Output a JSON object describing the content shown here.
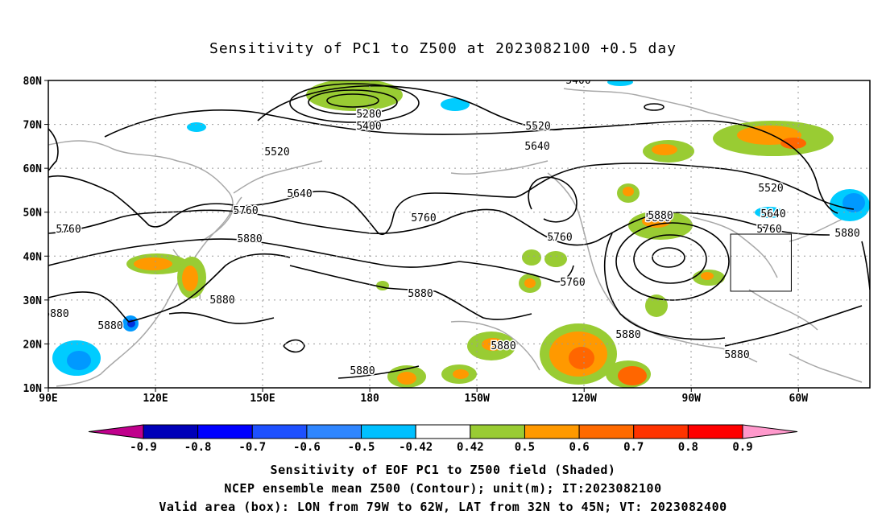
{
  "title": "Sensitivity of PC1 to Z500 at 2023082100 +0.5 day",
  "map": {
    "lat_labels": [
      "80N",
      "70N",
      "60N",
      "50N",
      "40N",
      "30N",
      "20N",
      "10N"
    ],
    "lon_labels": [
      "90E",
      "120E",
      "150E",
      "180",
      "150W",
      "120W",
      "90W",
      "60W"
    ],
    "lon_range": [
      90,
      320
    ],
    "lat_range": [
      10,
      80
    ],
    "contour_labels": [
      "5400",
      "5280",
      "5400",
      "5520",
      "5520",
      "5640",
      "5640",
      "5520",
      "5760",
      "5760",
      "5760",
      "5880",
      "5880",
      "5760",
      "5760",
      "5640",
      "5760",
      "5880",
      "5880",
      "5880",
      "5880",
      "5880",
      "5880",
      "5880",
      "5880",
      "5880",
      "5880"
    ],
    "box": {
      "lon_min": -79,
      "lon_max": -62,
      "lat_min": 32,
      "lat_max": 45
    },
    "colors": {
      "contour": "#000000",
      "coast": "#a8a8a8",
      "grid": "#9a9a9a",
      "pos_0_5": "#99cc33",
      "pos_0_6": "#ff9900",
      "pos_0_7": "#ff6600",
      "pos_0_8": "#ff3300",
      "neg_0_5": "#00ccff",
      "neg_0_6": "#0099ff",
      "neg_0_7": "#0055ff",
      "neg_0_8": "#0033dd"
    }
  },
  "colorbar": {
    "labels": [
      "-0.9",
      "-0.8",
      "-0.7",
      "-0.6",
      "-0.5",
      "-0.42",
      "0.42",
      "0.5",
      "0.6",
      "0.7",
      "0.8",
      "0.9"
    ],
    "colors": [
      "#c0008c",
      "#0000b8",
      "#0000ff",
      "#1e50ff",
      "#2f86ff",
      "#00c0ff",
      "#ffffff",
      "#99cc33",
      "#ff9900",
      "#ff6a00",
      "#ff3300",
      "#ff0000",
      "#ff99cc"
    ]
  },
  "footer": {
    "line1": "Sensitivity of EOF PC1 to Z500 field (Shaded)",
    "line2": "NCEP ensemble mean Z500 (Contour); unit(m); IT:2023082100",
    "line3": "Valid area (box): LON from 79W to 62W, LAT from 32N to 45N; VT: 2023082400"
  }
}
